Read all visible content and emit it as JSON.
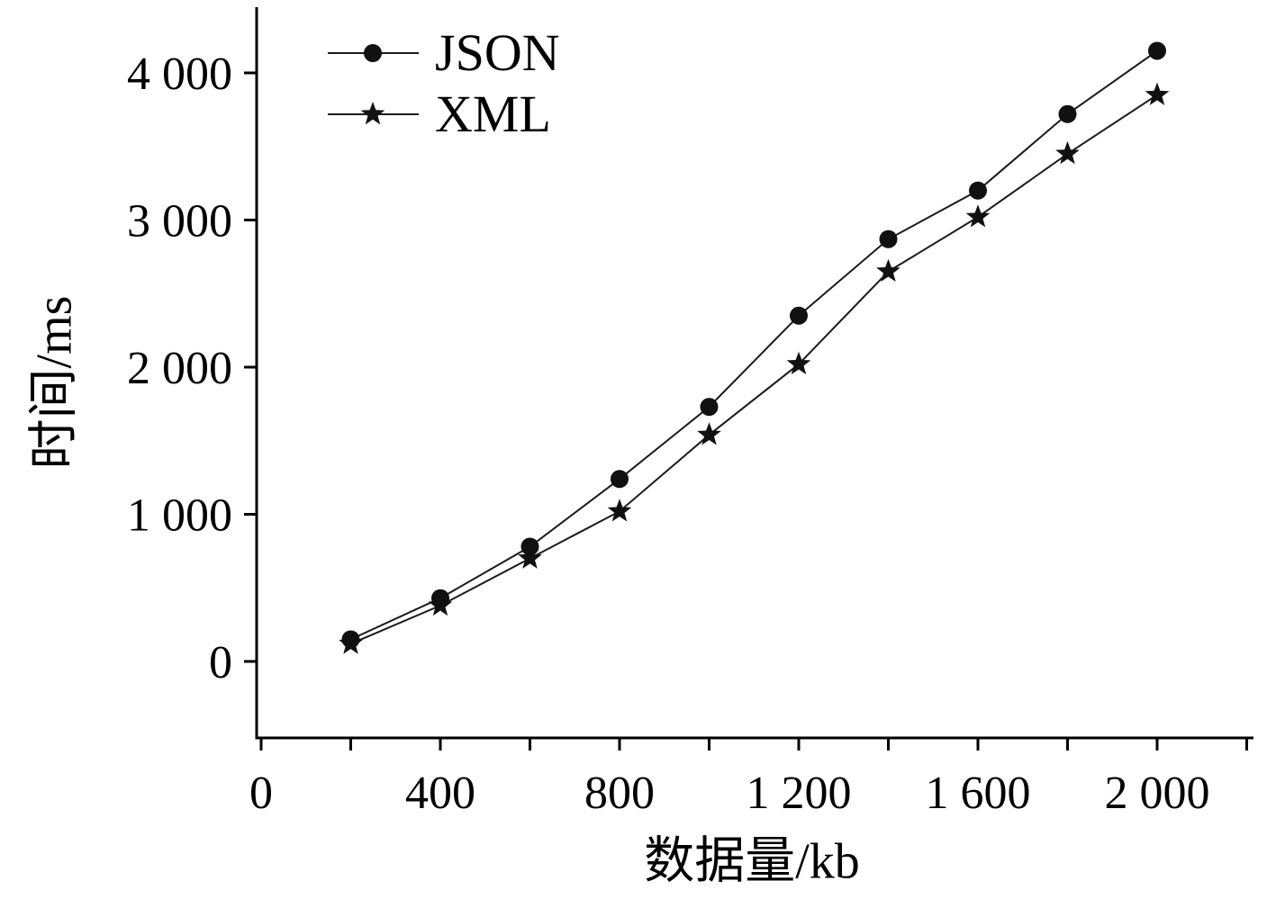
{
  "chart_data": {
    "type": "line",
    "title": "",
    "xlabel": "数据量/kb",
    "ylabel": "时间/ms",
    "x": [
      200,
      400,
      600,
      800,
      1000,
      1200,
      1400,
      1600,
      1800,
      2000
    ],
    "series": [
      {
        "name": "JSON",
        "marker": "circle",
        "values": [
          150,
          430,
          780,
          1240,
          1730,
          2350,
          2870,
          3200,
          3720,
          4150
        ]
      },
      {
        "name": "XML",
        "marker": "star",
        "values": [
          120,
          380,
          700,
          1020,
          1540,
          2020,
          2650,
          3020,
          3450,
          3850
        ]
      }
    ],
    "xlim": [
      0,
      2200
    ],
    "ylim": [
      -500,
      4450
    ],
    "x_ticks": [
      0,
      200,
      400,
      600,
      800,
      1000,
      1200,
      1400,
      1600,
      1800,
      2000,
      2200
    ],
    "x_tick_labels": {
      "0": "0",
      "400": "400",
      "800": "800",
      "1200": "1 200",
      "1600": "1 600",
      "2000": "2 000"
    },
    "y_ticks": [
      0,
      1000,
      2000,
      3000,
      4000
    ],
    "y_tick_labels": [
      "0",
      "1 000",
      "2 000",
      "3 000",
      "4 000"
    ],
    "legend_position": "top-left",
    "grid": false,
    "axis_color": "#000000",
    "line_color": "#1a1a1a",
    "marker_color": "#111111",
    "background": "#ffffff"
  }
}
